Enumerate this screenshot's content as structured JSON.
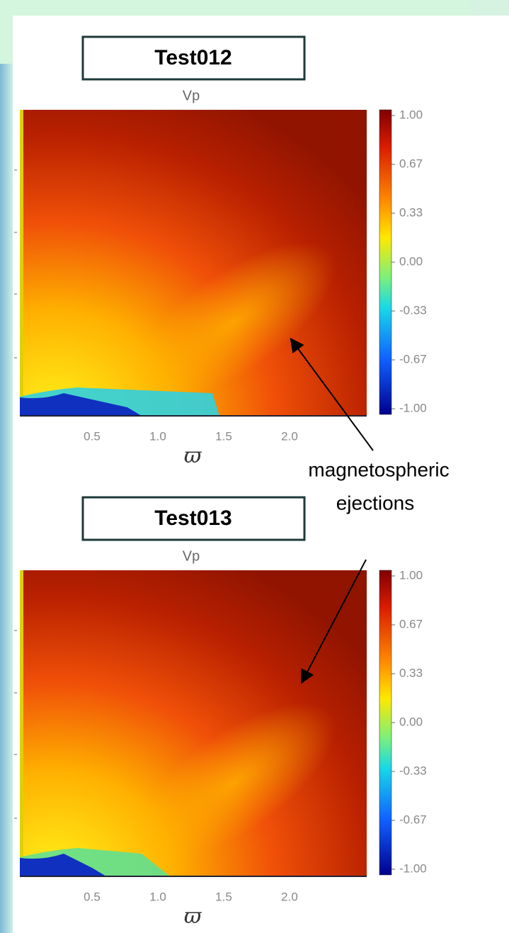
{
  "panels": [
    {
      "label": "Test012",
      "title": "Vp",
      "x_axis_label": "ϖ",
      "x_tick_labels": [
        "0.5",
        "1.0",
        "1.5",
        "2.0"
      ],
      "colorbar_labels": [
        "1.00",
        "0.67",
        "0.33",
        "0.00",
        "-0.33",
        "-0.67",
        "-1.00"
      ]
    },
    {
      "label": "Test013",
      "title": "Vp",
      "x_axis_label": "ϖ",
      "x_tick_labels": [
        "0.5",
        "1.0",
        "1.5",
        "2.0"
      ],
      "colorbar_labels": [
        "1.00",
        "0.67",
        "0.33",
        "0.00",
        "-0.33",
        "-0.67",
        "-1.00"
      ]
    }
  ],
  "annotation": {
    "lines": [
      "magnetospheric",
      "ejections"
    ]
  }
}
